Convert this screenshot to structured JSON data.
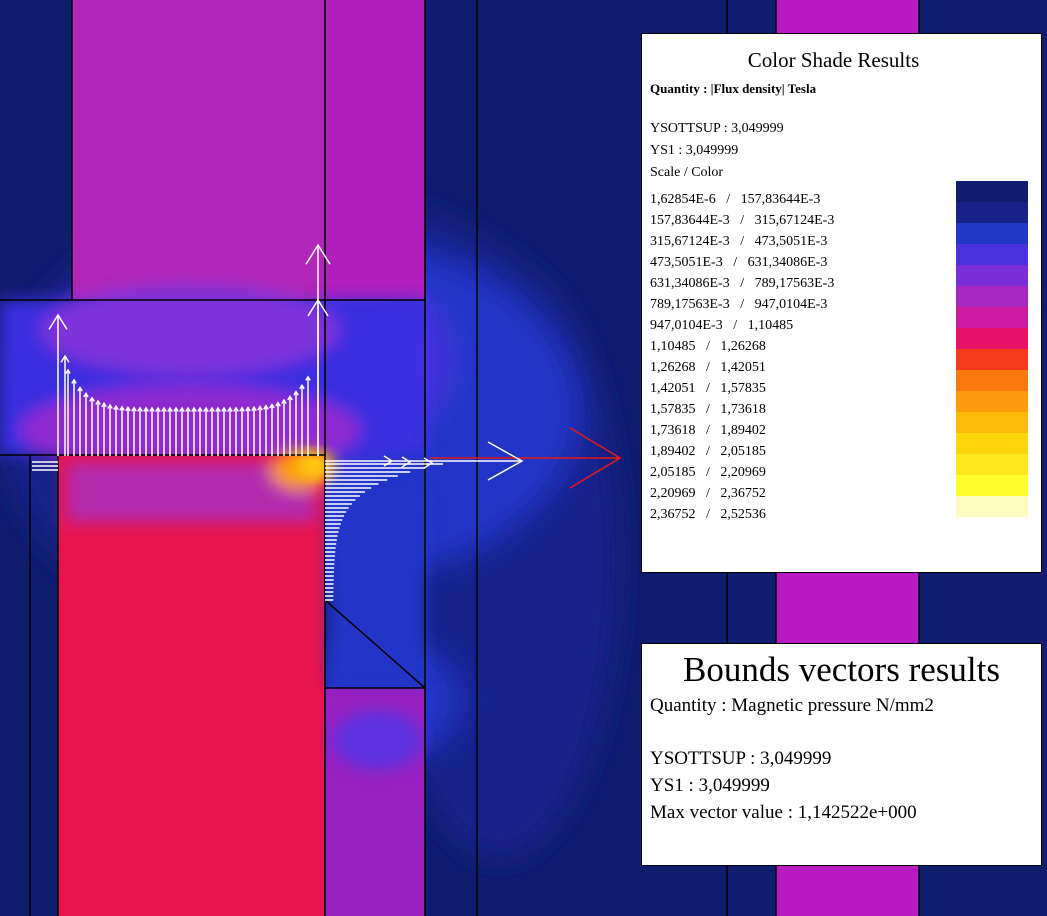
{
  "colors": {
    "background": "#0f1d6e",
    "shade_scale": [
      "#0f1d6e",
      "#16218a",
      "#2236c8",
      "#4a32e0",
      "#7a2ed8",
      "#a526c0",
      "#cc1a9e",
      "#e8146a",
      "#f43a1a",
      "#fa7a10",
      "#fc9a0c",
      "#fdba0a",
      "#fed40a",
      "#ffe820",
      "#ffff30",
      "#fffcbe"
    ],
    "vector_white": "#ffffff",
    "vector_red": "#e81818"
  },
  "legend": {
    "title": "Color Shade Results",
    "quantity": "Quantity : |Flux density| Tesla",
    "ysottsup": "YSOTTSUP : 3,049999",
    "ys1": "YS1 : 3,049999",
    "scale_header": "Scale / Color",
    "rows": [
      "1,62854E-6   /   157,83644E-3",
      "157,83644E-3   /   315,67124E-3",
      "315,67124E-3   /   473,5051E-3",
      "473,5051E-3   /   631,34086E-3",
      "631,34086E-3   /   789,17563E-3",
      "789,17563E-3   /   947,0104E-3",
      "947,0104E-3   /   1,10485",
      "1,10485   /   1,26268",
      "1,26268   /   1,42051",
      "1,42051   /   1,57835",
      "1,57835   /   1,73618",
      "1,73618   /   1,89402",
      "1,89402   /   2,05185",
      "2,05185   /   2,20969",
      "2,20969   /   2,36752",
      "2,36752   /   2,52536"
    ]
  },
  "vectors": {
    "title": "Bounds vectors results",
    "quantity": "Quantity : Magnetic pressure N/mm2",
    "ysottsup": "YSOTTSUP : 3,049999",
    "ys1": "YS1 : 3,049999",
    "max_value": "Max vector value : 1,142522e+000"
  }
}
